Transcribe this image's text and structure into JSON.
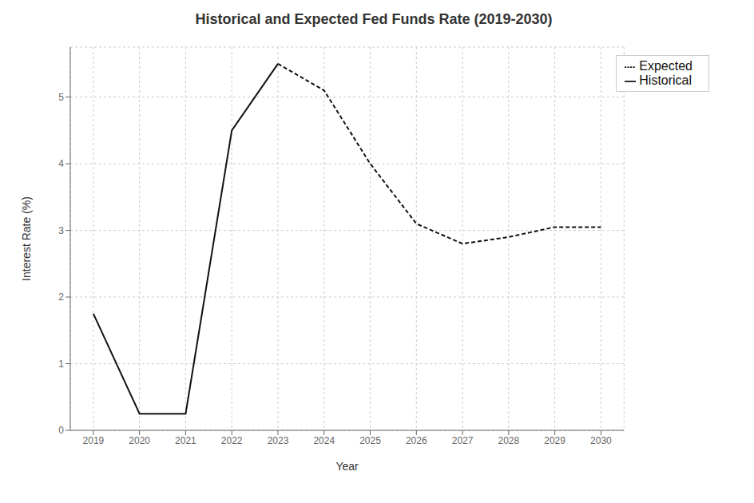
{
  "chart_data": {
    "type": "line",
    "title": "Historical and Expected Fed Funds Rate (2019-2030)",
    "xlabel": "Year",
    "ylabel": "Interest Rate (%)",
    "series": [
      {
        "name": "Historical",
        "color": "#111111",
        "line_style": "solid",
        "x": [
          2019,
          2020,
          2021,
          2022,
          2023
        ],
        "values": [
          1.75,
          0.25,
          0.25,
          4.5,
          5.5
        ]
      },
      {
        "name": "Expected",
        "color": "#111111",
        "line_style": "dashed",
        "x": [
          2023,
          2024,
          2025,
          2026,
          2027,
          2028,
          2029,
          2030
        ],
        "values": [
          5.5,
          5.1,
          4.0,
          3.1,
          2.8,
          2.9,
          3.05,
          3.05
        ]
      }
    ],
    "xlim": [
      2018.5,
      2030.5
    ],
    "ylim": [
      0,
      5.75
    ],
    "xticks": [
      2019,
      2020,
      2021,
      2022,
      2023,
      2024,
      2025,
      2026,
      2027,
      2028,
      2029,
      2030
    ],
    "yticks": [
      0,
      1,
      2,
      3,
      4,
      5
    ],
    "grid": true,
    "legend": "upper right"
  }
}
